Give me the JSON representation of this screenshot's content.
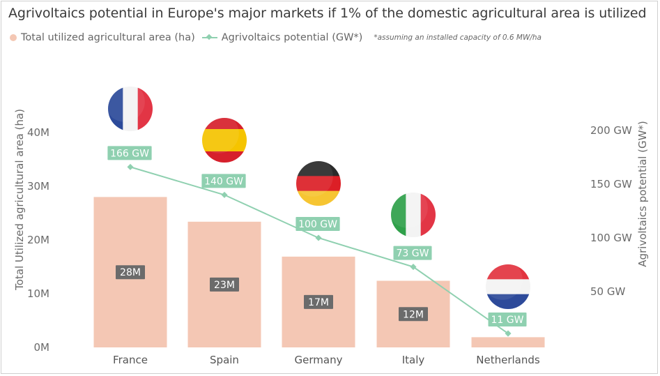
{
  "title": "Agrivoltaics potential in Europe's major markets if 1% of the domestic agricultural area is utilized",
  "legend": {
    "bar_label": "Total utilized agricultural area (ha)",
    "line_label": "Agrivoltaics potential (GW*)",
    "note": "*assuming an installed capacity of 0.6 MW/ha"
  },
  "colors": {
    "bar": "#f4c7b4",
    "line": "#8fd0b0",
    "bar_label_bg": "#6b6b6b",
    "line_label_bg": "#8fd0b0"
  },
  "chart_data": {
    "type": "bar",
    "categories": [
      "France",
      "Spain",
      "Germany",
      "Italy",
      "Netherlands"
    ],
    "series": [
      {
        "name": "Total utilized agricultural area (ha)",
        "type": "bar",
        "values": [
          28000000,
          23400000,
          16900000,
          12400000,
          1900000
        ],
        "data_labels": [
          "28M",
          "23M",
          "17M",
          "12M",
          ""
        ]
      },
      {
        "name": "Agrivoltaics potential (GW*)",
        "type": "line",
        "values": [
          166,
          140,
          100,
          73,
          11
        ],
        "data_labels": [
          "166 GW",
          "140 GW",
          "100 GW",
          "73 GW",
          "11 GW"
        ]
      }
    ],
    "y_left": {
      "label": "Total Utilized agricultural area (ha)",
      "range": [
        0,
        40000000
      ],
      "ticks": [
        0,
        10000000,
        20000000,
        30000000,
        40000000
      ],
      "tick_labels": [
        "0M",
        "10M",
        "20M",
        "30M",
        "40M"
      ]
    },
    "y_right": {
      "label": "Agrivoltaics potential (GW*)",
      "range": [
        0,
        200
      ],
      "ticks": [
        50,
        100,
        150,
        200
      ],
      "tick_labels": [
        "50 GW",
        "100 GW",
        "150 GW",
        "200 GW"
      ]
    },
    "flags": [
      "France",
      "Spain",
      "Germany",
      "Italy",
      "Netherlands"
    ],
    "grid": false,
    "legend_position": "top-left"
  }
}
